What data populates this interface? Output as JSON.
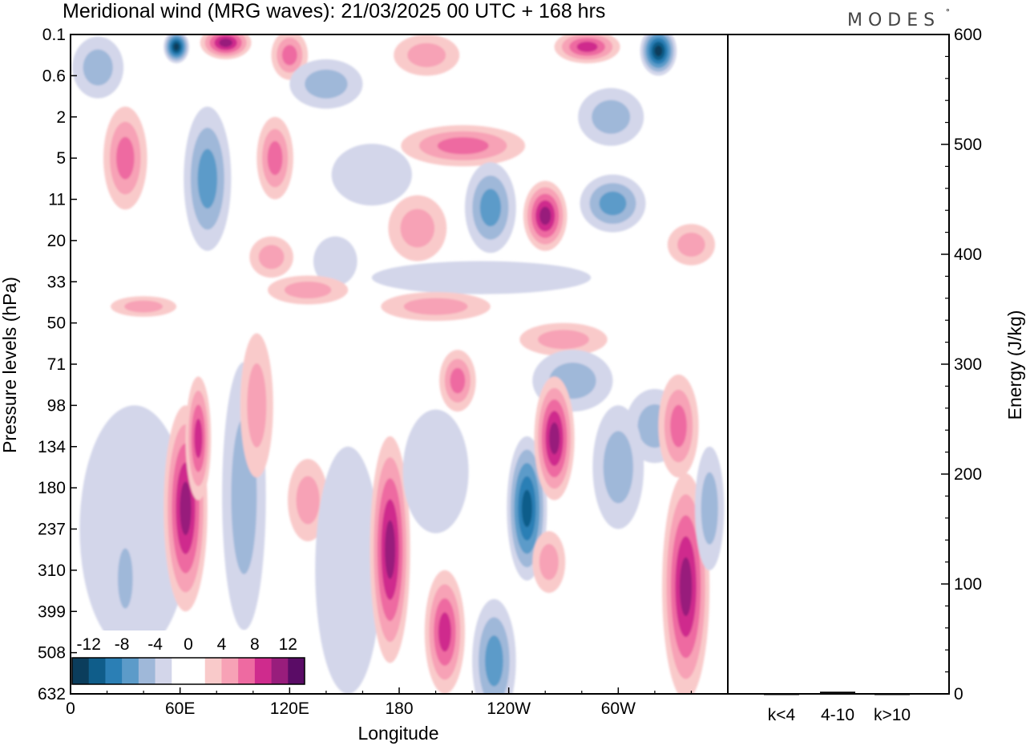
{
  "header": {
    "title": "Meridional wind (MRG waves):  21/03/2025  00 UTC  + 168 hrs",
    "brand": "MODES",
    "brand_mark": "°"
  },
  "chart_data": [
    {
      "type": "heatmap",
      "title": "Meridional wind (MRG waves):  21/03/2025  00 UTC  + 168 hrs",
      "xlabel": "Longitude",
      "ylabel": "Pressure levels (hPa)",
      "x_ticks": [
        {
          "lon": 0,
          "label": "0"
        },
        {
          "lon": 60,
          "label": "60E"
        },
        {
          "lon": 120,
          "label": "120E"
        },
        {
          "lon": 180,
          "label": "180"
        },
        {
          "lon": 240,
          "label": "120W"
        },
        {
          "lon": 300,
          "label": "60W"
        }
      ],
      "xlim": [
        0,
        360
      ],
      "y_levels": [
        "0.1",
        "0.6",
        "2",
        "5",
        "11",
        "20",
        "33",
        "50",
        "71",
        "98",
        "134",
        "180",
        "237",
        "310",
        "399",
        "508",
        "632"
      ],
      "colorbar": {
        "labels": [
          "-12",
          "-8",
          "-4",
          "0",
          "4",
          "8",
          "12"
        ],
        "bins": [
          "#0b3d5c",
          "#0f5d8a",
          "#2b7fb5",
          "#5c9bc9",
          "#9fb8d9",
          "#d3d6ea",
          "#ffffff",
          "#ffffff",
          "#f9caca",
          "#f7a2b6",
          "#ee6aa1",
          "#cf2b8d",
          "#981d7c",
          "#5a0c66"
        ]
      },
      "contours": [
        {
          "lon": 58,
          "lev": 0.3,
          "value": -13,
          "w": 7,
          "h": 0.8
        },
        {
          "lon": 85,
          "lev": 0.2,
          "value": 11,
          "w": 14,
          "h": 0.8
        },
        {
          "lon": 120,
          "lev": 0.5,
          "value": 7,
          "w": 10,
          "h": 1.2
        },
        {
          "lon": 140,
          "lev": 1.2,
          "value": -5,
          "w": 20,
          "h": 1.2
        },
        {
          "lon": 195,
          "lev": 0.5,
          "value": 5,
          "w": 18,
          "h": 1.0
        },
        {
          "lon": 283,
          "lev": 0.3,
          "value": 9,
          "w": 18,
          "h": 0.8
        },
        {
          "lon": 322,
          "lev": 0.4,
          "value": -12,
          "w": 10,
          "h": 1.2
        },
        {
          "lon": 15,
          "lev": 0.8,
          "value": -4,
          "w": 14,
          "h": 1.5
        },
        {
          "lon": 30,
          "lev": 3.0,
          "value": 6,
          "w": 12,
          "h": 2.5
        },
        {
          "lon": 75,
          "lev": 3.5,
          "value": -7,
          "w": 13,
          "h": 3.5
        },
        {
          "lon": 112,
          "lev": 3.0,
          "value": 6,
          "w": 10,
          "h": 2.0
        },
        {
          "lon": 110,
          "lev": 5.4,
          "value": 4,
          "w": 12,
          "h": 1.0
        },
        {
          "lon": 165,
          "lev": 3.4,
          "value": -3,
          "w": 22,
          "h": 1.5
        },
        {
          "lon": 215,
          "lev": 2.7,
          "value": 7,
          "w": 34,
          "h": 1.0
        },
        {
          "lon": 190,
          "lev": 4.7,
          "value": 5,
          "w": 16,
          "h": 1.6
        },
        {
          "lon": 230,
          "lev": 4.2,
          "value": -7,
          "w": 14,
          "h": 2.2
        },
        {
          "lon": 260,
          "lev": 4.4,
          "value": 10,
          "w": 12,
          "h": 1.7
        },
        {
          "lon": 297,
          "lev": 4.1,
          "value": -6,
          "w": 18,
          "h": 1.4
        },
        {
          "lon": 296,
          "lev": 2.0,
          "value": -4,
          "w": 18,
          "h": 1.4
        },
        {
          "lon": 340,
          "lev": 5.1,
          "value": 4,
          "w": 13,
          "h": 1.0
        },
        {
          "lon": 145,
          "lev": 5.5,
          "value": -3,
          "w": 12,
          "h": 1.2
        },
        {
          "lon": 130,
          "lev": 6.2,
          "value": 4,
          "w": 22,
          "h": 0.7
        },
        {
          "lon": 225,
          "lev": 5.9,
          "value": -3,
          "w": 60,
          "h": 0.8
        },
        {
          "lon": 200,
          "lev": 6.6,
          "value": 4,
          "w": 30,
          "h": 0.7
        },
        {
          "lon": 40,
          "lev": 6.6,
          "value": 4,
          "w": 18,
          "h": 0.5
        },
        {
          "lon": 270,
          "lev": 7.4,
          "value": 4,
          "w": 24,
          "h": 0.8
        },
        {
          "lon": 275,
          "lev": 8.4,
          "value": -5,
          "w": 22,
          "h": 1.5
        },
        {
          "lon": 320,
          "lev": 9.5,
          "value": -5,
          "w": 16,
          "h": 1.8
        },
        {
          "lon": 35,
          "lev": 12.0,
          "value": -3,
          "w": 30,
          "h": 6.0
        },
        {
          "lon": 30,
          "lev": 13.2,
          "value": -5,
          "w": 7,
          "h": 2.5
        },
        {
          "lon": 63,
          "lev": 11.5,
          "value": 10,
          "w": 12,
          "h": 5.0
        },
        {
          "lon": 70,
          "lev": 9.8,
          "value": 9,
          "w": 7,
          "h": 3.0
        },
        {
          "lon": 95,
          "lev": 11.2,
          "value": -4,
          "w": 12,
          "h": 6.5
        },
        {
          "lon": 102,
          "lev": 9.0,
          "value": 4,
          "w": 9,
          "h": 3.5
        },
        {
          "lon": 130,
          "lev": 11.3,
          "value": 4,
          "w": 11,
          "h": 2.0
        },
        {
          "lon": 152,
          "lev": 13.0,
          "value": -3,
          "w": 18,
          "h": 6.0
        },
        {
          "lon": 175,
          "lev": 12.5,
          "value": 10,
          "w": 11,
          "h": 5.5
        },
        {
          "lon": 205,
          "lev": 14.5,
          "value": 9,
          "w": 11,
          "h": 3.0
        },
        {
          "lon": 212,
          "lev": 8.4,
          "value": 6,
          "w": 10,
          "h": 1.5
        },
        {
          "lon": 232,
          "lev": 15.2,
          "value": -6,
          "w": 12,
          "h": 3.0
        },
        {
          "lon": 250,
          "lev": 11.5,
          "value": -11,
          "w": 11,
          "h": 3.5
        },
        {
          "lon": 265,
          "lev": 9.8,
          "value": 11,
          "w": 11,
          "h": 3.0
        },
        {
          "lon": 262,
          "lev": 12.8,
          "value": 5,
          "w": 9,
          "h": 1.5
        },
        {
          "lon": 300,
          "lev": 10.5,
          "value": -5,
          "w": 14,
          "h": 3.0
        },
        {
          "lon": 333,
          "lev": 9.5,
          "value": 6,
          "w": 11,
          "h": 2.5
        },
        {
          "lon": 337,
          "lev": 13.4,
          "value": 10,
          "w": 13,
          "h": 5.5
        },
        {
          "lon": 350,
          "lev": 11.5,
          "value": -4,
          "w": 8,
          "h": 3.0
        },
        {
          "lon": 200,
          "lev": 10.6,
          "value": -3,
          "w": 18,
          "h": 3.0
        }
      ]
    },
    {
      "type": "bar",
      "ylabel": "Energy (J/kg)",
      "categories": [
        "k<4",
        "4-10",
        "k>10"
      ],
      "values": [
        0,
        2,
        0
      ],
      "ylim": [
        0,
        600
      ],
      "y_ticks": [
        "0",
        "100",
        "200",
        "300",
        "400",
        "500",
        "600"
      ]
    }
  ]
}
